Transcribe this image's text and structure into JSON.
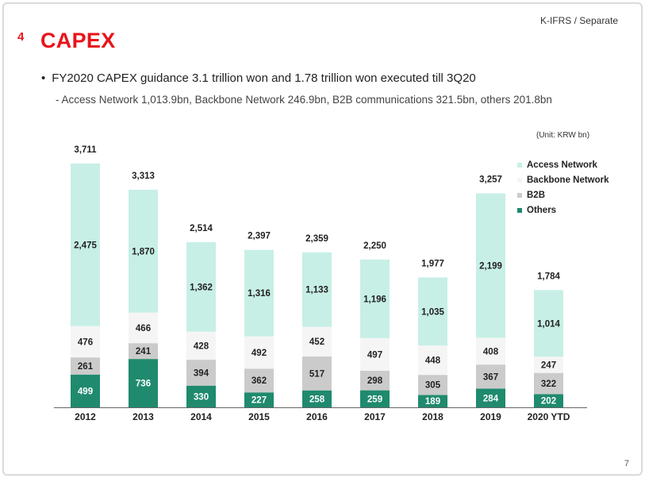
{
  "header": {
    "accounting_basis": "K-IFRS / Separate",
    "section_number": "4",
    "title": "CAPEX"
  },
  "bullets": {
    "main": "FY2020 CAPEX guidance 3.1 trillion won and 1.78 trillion won executed till 3Q20",
    "sub": "- Access Network 1,013.9bn, Backbone Network 246.9bn, B2B communications 321.5bn, others 201.8bn"
  },
  "unit_note": "(Unit: KRW bn)",
  "page_number": "7",
  "colors": {
    "access": "#c7efe6",
    "backbone": "#f5f5f5",
    "b2b": "#cbcbcb",
    "others": "#1f8a6e"
  },
  "chart_data": {
    "type": "bar",
    "stacked": true,
    "categories": [
      "2012",
      "2013",
      "2014",
      "2015",
      "2016",
      "2017",
      "2018",
      "2019",
      "2020 YTD"
    ],
    "series": [
      {
        "name": "Others",
        "color": "#1f8a6e",
        "values": [
          499,
          736,
          330,
          227,
          258,
          259,
          189,
          284,
          202
        ]
      },
      {
        "name": "B2B",
        "color": "#cbcbcb",
        "values": [
          261,
          241,
          394,
          362,
          517,
          298,
          305,
          367,
          322
        ]
      },
      {
        "name": "Backbone Network",
        "color": "#f5f5f5",
        "values": [
          476,
          466,
          428,
          492,
          452,
          497,
          448,
          408,
          247
        ]
      },
      {
        "name": "Access Network",
        "color": "#c7efe6",
        "values": [
          2475,
          1870,
          1362,
          1316,
          1133,
          1196,
          1035,
          2199,
          1014
        ]
      }
    ],
    "totals": [
      "3,711",
      "3,313",
      "2,514",
      "2,397",
      "2,359",
      "2,250",
      "1,977",
      "3,257",
      "1,784"
    ],
    "legend_order": [
      "Access Network",
      "Backbone Network",
      "B2B",
      "Others"
    ],
    "legend_position": "top-right",
    "ylim": [
      0,
      3711
    ],
    "grid": false
  }
}
